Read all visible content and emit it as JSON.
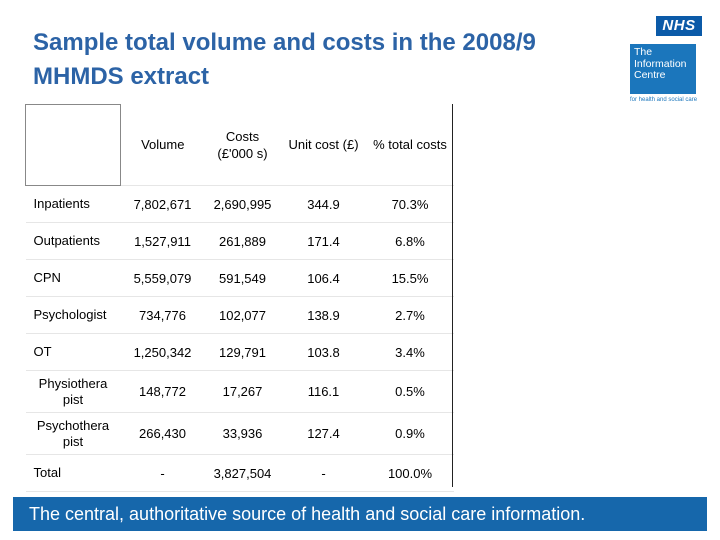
{
  "title": "Sample total volume and costs in the 2008/9 MHMDS extract",
  "logo": {
    "nhs": "NHS",
    "ic_lines": [
      "The",
      "Information",
      "Centre"
    ],
    "tagline": "for health and social care"
  },
  "table": {
    "headers": [
      "",
      "Volume",
      "Costs (£'000 s)",
      "Unit cost (£)",
      "% total costs"
    ],
    "rows": [
      {
        "label": "Inpatients",
        "volume": "7,802,671",
        "costs": "2,690,995",
        "unit": "344.9",
        "pct": "70.3%"
      },
      {
        "label": "Outpatients",
        "volume": "1,527,911",
        "costs": "261,889",
        "unit": "171.4",
        "pct": "6.8%"
      },
      {
        "label": "CPN",
        "volume": "5,559,079",
        "costs": "591,549",
        "unit": "106.4",
        "pct": "15.5%"
      },
      {
        "label": "Psychologist",
        "volume": "734,776",
        "costs": "102,077",
        "unit": "138.9",
        "pct": "2.7%"
      },
      {
        "label": "OT",
        "volume": "1,250,342",
        "costs": "129,791",
        "unit": "103.8",
        "pct": "3.4%"
      },
      {
        "label": "Physiothera pist",
        "volume": "148,772",
        "costs": "17,267",
        "unit": "116.1",
        "pct": "0.5%"
      },
      {
        "label": "Psychothera pist",
        "volume": "266,430",
        "costs": "33,936",
        "unit": "127.4",
        "pct": "0.9%"
      },
      {
        "label": "Total",
        "volume": "-",
        "costs": "3,827,504",
        "unit": "-",
        "pct": "100.0%"
      }
    ]
  },
  "footer": "The central, authoritative source of health and social care information."
}
